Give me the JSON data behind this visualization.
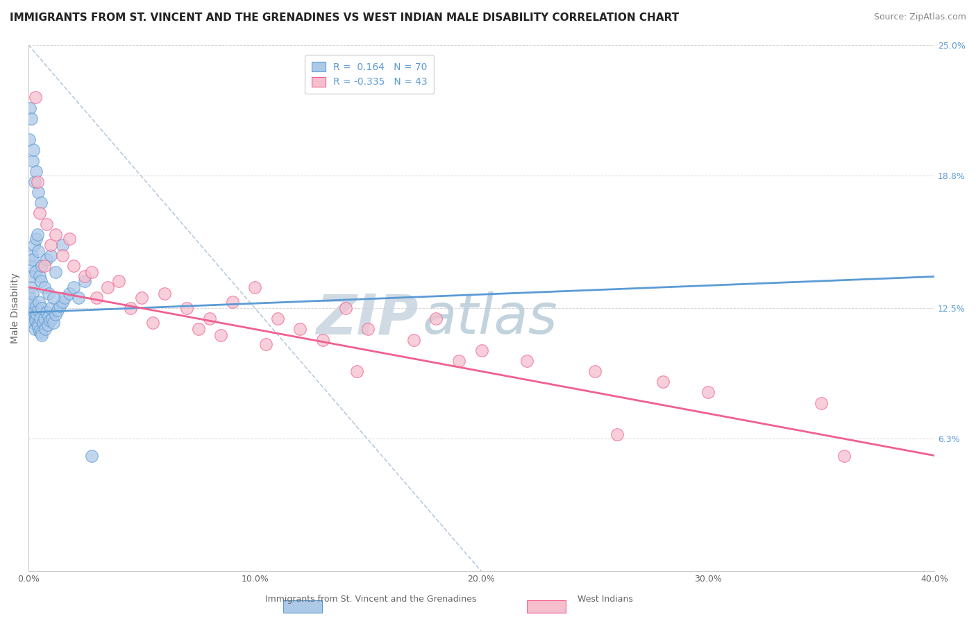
{
  "title": "IMMIGRANTS FROM ST. VINCENT AND THE GRENADINES VS WEST INDIAN MALE DISABILITY CORRELATION CHART",
  "source": "Source: ZipAtlas.com",
  "ylabel": "Male Disability",
  "legend_label_blue": "Immigrants from St. Vincent and the Grenadines",
  "legend_label_pink": "West Indians",
  "legend_R_blue": "0.164",
  "legend_N_blue": "70",
  "legend_R_pink": "-0.335",
  "legend_N_pink": "43",
  "xlim": [
    0.0,
    40.0
  ],
  "ylim": [
    0.0,
    25.0
  ],
  "xtick_labels": [
    "0.0%",
    "10.0%",
    "20.0%",
    "30.0%",
    "40.0%"
  ],
  "xtick_values": [
    0.0,
    10.0,
    20.0,
    30.0,
    40.0
  ],
  "ytick_labels_right": [
    "6.3%",
    "12.5%",
    "18.8%",
    "25.0%"
  ],
  "ytick_values_right": [
    6.3,
    12.5,
    18.8,
    25.0
  ],
  "blue_color": "#adc9e8",
  "pink_color": "#f5bfce",
  "blue_edge_color": "#5b9bd5",
  "pink_edge_color": "#f06090",
  "blue_line_color": "#5b9bd5",
  "pink_line_color": "#f06090",
  "diag_color": "#b0c4d8",
  "watermark_zip_color": "#c8d8e8",
  "watermark_atlas_color": "#b0c4d8",
  "blue_scatter_x": [
    0.05,
    0.08,
    0.1,
    0.12,
    0.15,
    0.18,
    0.2,
    0.22,
    0.25,
    0.28,
    0.3,
    0.32,
    0.35,
    0.38,
    0.4,
    0.42,
    0.45,
    0.48,
    0.5,
    0.52,
    0.55,
    0.58,
    0.6,
    0.65,
    0.7,
    0.75,
    0.8,
    0.85,
    0.9,
    0.95,
    1.0,
    1.05,
    1.1,
    1.2,
    1.3,
    1.4,
    1.5,
    1.6,
    1.8,
    2.0,
    2.2,
    2.5,
    0.1,
    0.15,
    0.2,
    0.25,
    0.3,
    0.35,
    0.4,
    0.45,
    0.5,
    0.55,
    0.6,
    0.7,
    0.8,
    0.9,
    1.0,
    1.1,
    1.2,
    1.5,
    0.05,
    0.08,
    0.12,
    0.18,
    0.22,
    0.28,
    0.35,
    0.42,
    0.55,
    2.8
  ],
  "blue_scatter_y": [
    12.5,
    13.0,
    13.5,
    14.0,
    12.8,
    13.2,
    12.0,
    11.8,
    12.3,
    11.5,
    12.1,
    11.9,
    12.6,
    12.2,
    11.7,
    12.4,
    11.6,
    12.8,
    11.4,
    12.0,
    11.3,
    12.5,
    11.2,
    11.8,
    12.0,
    11.5,
    12.3,
    11.7,
    12.1,
    11.9,
    12.5,
    12.0,
    11.8,
    12.2,
    12.4,
    12.6,
    12.8,
    13.0,
    13.2,
    13.5,
    13.0,
    13.8,
    14.5,
    15.0,
    14.8,
    15.5,
    14.2,
    15.8,
    16.0,
    15.2,
    14.0,
    13.8,
    14.5,
    13.5,
    14.8,
    13.2,
    15.0,
    13.0,
    14.2,
    15.5,
    20.5,
    22.0,
    21.5,
    19.5,
    20.0,
    18.5,
    19.0,
    18.0,
    17.5,
    5.5
  ],
  "pink_scatter_x": [
    0.3,
    0.5,
    0.8,
    1.0,
    1.5,
    2.0,
    2.5,
    2.8,
    3.5,
    4.0,
    5.0,
    6.0,
    7.0,
    8.0,
    9.0,
    10.0,
    11.0,
    12.0,
    13.0,
    14.0,
    15.0,
    17.0,
    18.0,
    20.0,
    22.0,
    25.0,
    28.0,
    30.0,
    35.0,
    0.4,
    0.7,
    1.2,
    1.8,
    3.0,
    4.5,
    5.5,
    7.5,
    8.5,
    10.5,
    14.5,
    19.0,
    26.0,
    36.0
  ],
  "pink_scatter_y": [
    22.5,
    17.0,
    16.5,
    15.5,
    15.0,
    14.5,
    14.0,
    14.2,
    13.5,
    13.8,
    13.0,
    13.2,
    12.5,
    12.0,
    12.8,
    13.5,
    12.0,
    11.5,
    11.0,
    12.5,
    11.5,
    11.0,
    12.0,
    10.5,
    10.0,
    9.5,
    9.0,
    8.5,
    8.0,
    18.5,
    14.5,
    16.0,
    15.8,
    13.0,
    12.5,
    11.8,
    11.5,
    11.2,
    10.8,
    9.5,
    10.0,
    6.5,
    5.5
  ],
  "blue_trend_x0": 0.0,
  "blue_trend_y0": 12.3,
  "blue_trend_x1": 40.0,
  "blue_trend_y1": 14.0,
  "pink_trend_x0": 0.0,
  "pink_trend_y0": 13.5,
  "pink_trend_x1": 40.0,
  "pink_trend_y1": 5.5,
  "diag_x0": 0.0,
  "diag_y0": 25.0,
  "diag_x1": 20.0,
  "diag_y1": 0.0,
  "title_fontsize": 11,
  "axis_label_fontsize": 10,
  "tick_fontsize": 9,
  "legend_fontsize": 10,
  "source_fontsize": 9
}
